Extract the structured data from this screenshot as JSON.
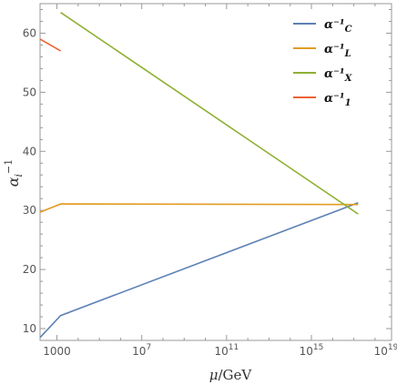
{
  "chart_data": {
    "type": "line",
    "xlabel_var": "μ",
    "xlabel_unit": "/GeV",
    "ylabel_var": "α",
    "ylabel_sub": "i",
    "ylabel_sup": "−1",
    "x_scale": "log10",
    "xlim": [
      160.0,
      6e+18
    ],
    "ylim": [
      8,
      65
    ],
    "y_ticks": [
      10,
      20,
      30,
      40,
      50,
      60
    ],
    "x_ticks": [
      {
        "value": 1000,
        "base": "1000",
        "exp": ""
      },
      {
        "value": 10000000.0,
        "base": "10",
        "exp": "7"
      },
      {
        "value": 100000000000.0,
        "base": "10",
        "exp": "11"
      },
      {
        "value": 1000000000000000.0,
        "base": "10",
        "exp": "15"
      },
      {
        "value": 1e+19,
        "base": "10",
        "exp": "19"
      }
    ],
    "legend_position": "top-right",
    "series": [
      {
        "name": "α⁻¹",
        "sub": "C",
        "color": "#5e81b5",
        "points": [
          [
            160.0,
            8.5
          ],
          [
            1500.0,
            12.2
          ],
          [
            1.6e+17,
            31.3
          ]
        ]
      },
      {
        "name": "α⁻¹",
        "sub": "L",
        "color": "#e19c24",
        "points": [
          [
            160.0,
            29.7
          ],
          [
            1500.0,
            31.1
          ],
          [
            1.6e+17,
            31.0
          ]
        ]
      },
      {
        "name": "α⁻¹",
        "sub": "X",
        "color": "#8fb032",
        "points": [
          [
            1500.0,
            63.5
          ],
          [
            1.6e+17,
            29.4
          ]
        ]
      },
      {
        "name": "α⁻¹",
        "sub": "1",
        "color": "#eb6235",
        "points": [
          [
            160.0,
            59.0
          ],
          [
            1500.0,
            57.0
          ]
        ]
      }
    ]
  }
}
